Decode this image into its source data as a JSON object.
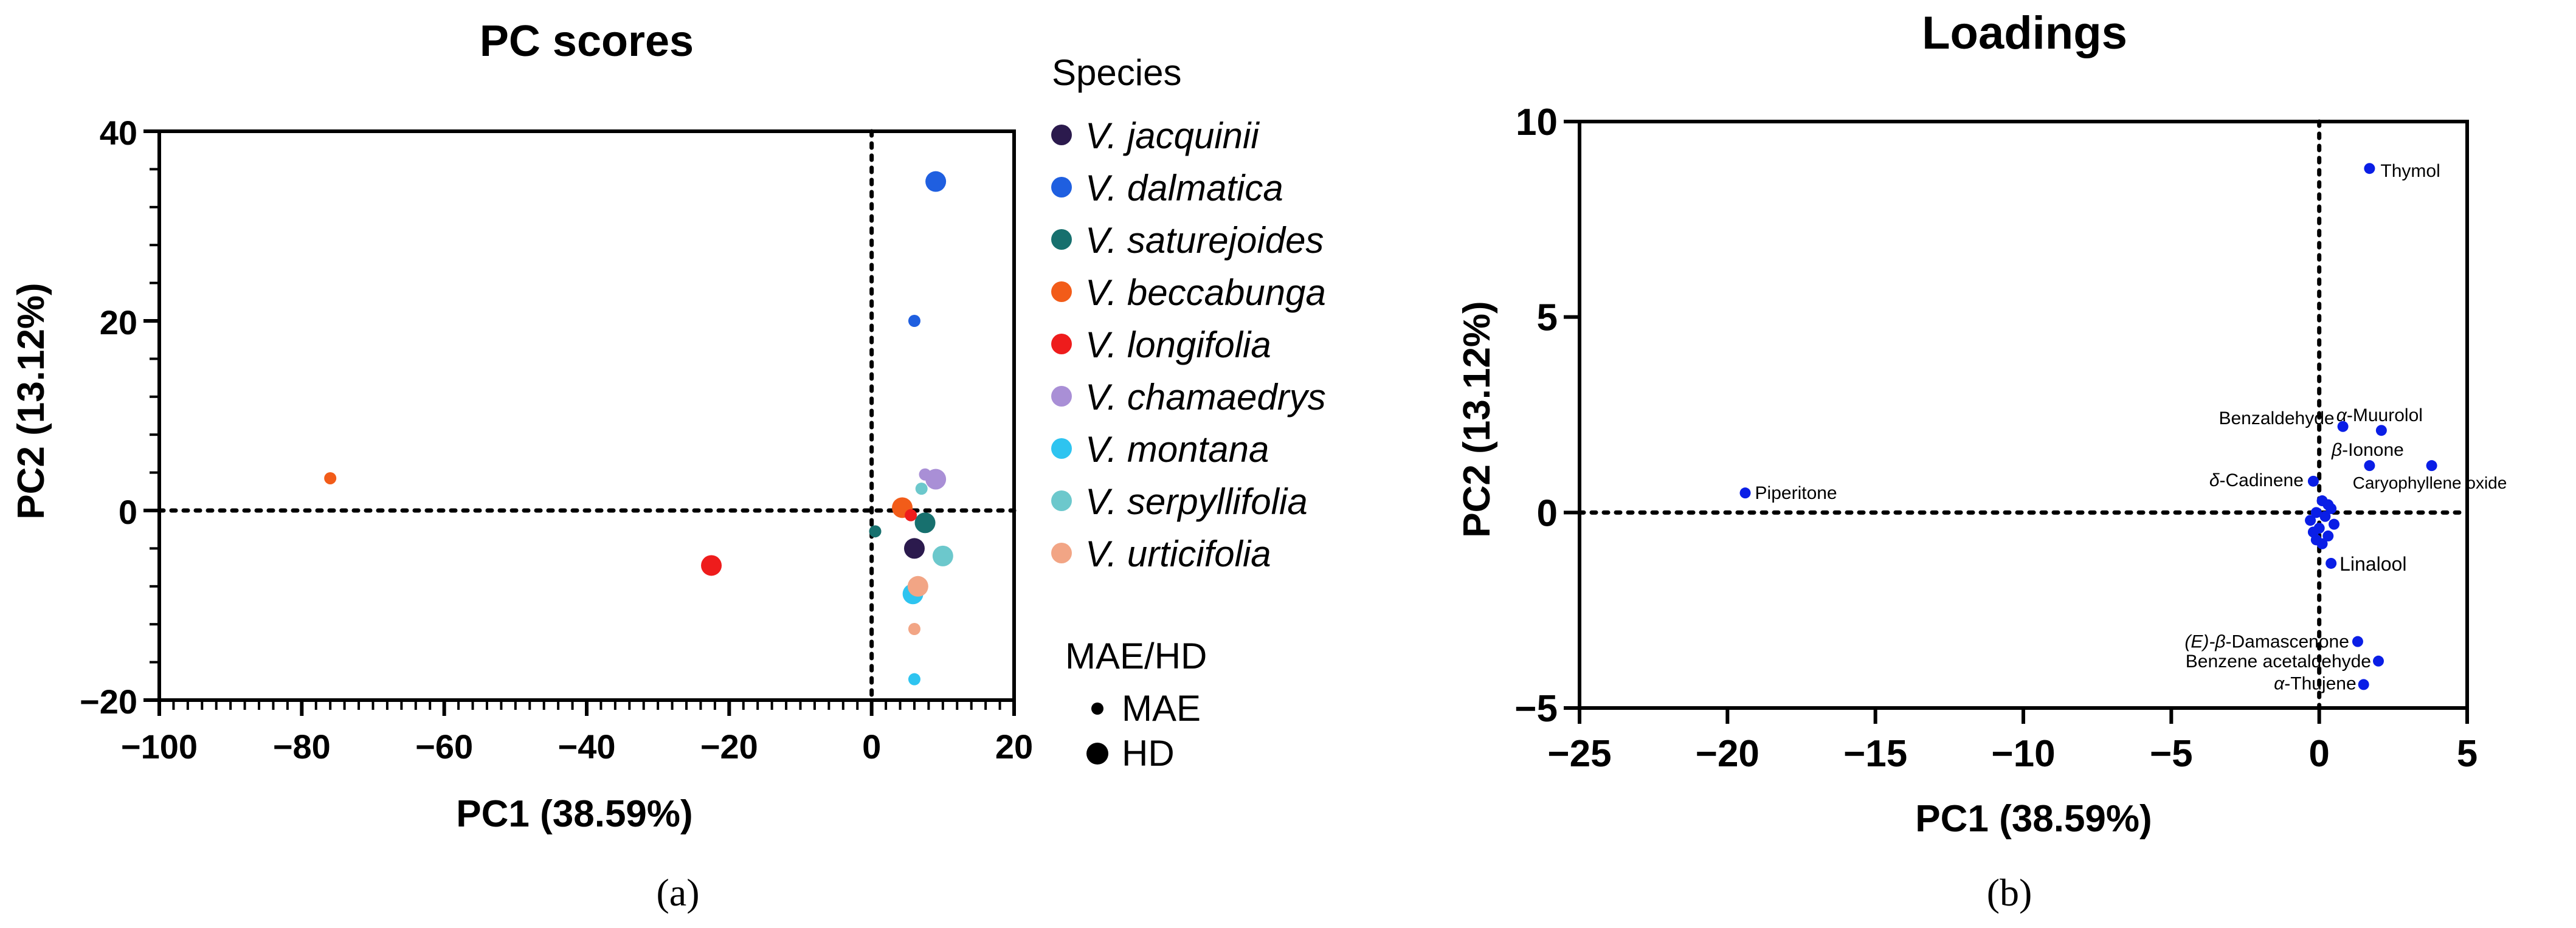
{
  "panel_labels": {
    "a": "(a)",
    "b": "(b)"
  },
  "chart_data": [
    {
      "type": "scatter",
      "title": "PC scores",
      "xlabel": "PC1 (38.59%)",
      "ylabel": "PC2 (13.12%)",
      "xlim": [
        -100,
        20
      ],
      "ylim": [
        -20,
        40
      ],
      "xticks": [
        -100,
        -80,
        -60,
        -40,
        -20,
        0,
        20
      ],
      "yticks": [
        -20,
        0,
        20,
        40
      ],
      "grid": false,
      "reference_lines": "dotted lines at x=0 and y=0",
      "legend": {
        "position": "right",
        "species_title": "Species",
        "method_title": "MAE/HD",
        "methods": [
          "MAE",
          "HD"
        ]
      },
      "series": [
        {
          "name": "V. jacquinii",
          "color": "#2b1a4d",
          "points": [
            {
              "x": 6,
              "y": -4,
              "method": "HD"
            }
          ]
        },
        {
          "name": "V. dalmatica",
          "color": "#1f5fe0",
          "points": [
            {
              "x": 9,
              "y": 34.7,
              "method": "HD"
            },
            {
              "x": 6,
              "y": 20,
              "method": "MAE"
            }
          ]
        },
        {
          "name": "V. saturejoides",
          "color": "#17706e",
          "points": [
            {
              "x": 7.5,
              "y": -1.3,
              "method": "HD"
            },
            {
              "x": 0.5,
              "y": -2.2,
              "method": "MAE"
            }
          ]
        },
        {
          "name": "V. beccabunga",
          "color": "#f25c19",
          "points": [
            {
              "x": 4.3,
              "y": 0.3,
              "method": "HD"
            },
            {
              "x": -76,
              "y": 3.4,
              "method": "MAE"
            }
          ]
        },
        {
          "name": "V. longifolia",
          "color": "#ee1c1c",
          "points": [
            {
              "x": -22.5,
              "y": -5.8,
              "method": "HD"
            },
            {
              "x": 5.5,
              "y": -0.5,
              "method": "MAE"
            }
          ]
        },
        {
          "name": "V. chamaedrys",
          "color": "#a98fd6",
          "points": [
            {
              "x": 9,
              "y": 3.3,
              "method": "HD"
            },
            {
              "x": 7.5,
              "y": 3.8,
              "method": "MAE"
            }
          ]
        },
        {
          "name": "V. montana",
          "color": "#2ec4f0",
          "points": [
            {
              "x": 5.8,
              "y": -8.8,
              "method": "HD"
            },
            {
              "x": 6,
              "y": -17.8,
              "method": "MAE"
            }
          ]
        },
        {
          "name": "V. serpyllifolia",
          "color": "#6cc8cc",
          "points": [
            {
              "x": 10,
              "y": -4.8,
              "method": "HD"
            },
            {
              "x": 7,
              "y": 2.3,
              "method": "MAE"
            }
          ]
        },
        {
          "name": "V. urticifolia",
          "color": "#f2a585",
          "points": [
            {
              "x": 6.5,
              "y": -8,
              "method": "HD"
            },
            {
              "x": 6,
              "y": -12.5,
              "method": "MAE"
            }
          ]
        }
      ]
    },
    {
      "type": "scatter",
      "title": "Loadings",
      "xlabel": "PC1 (38.59%)",
      "ylabel": "PC2 (13.12%)",
      "xlim": [
        -25,
        5
      ],
      "ylim": [
        -5,
        10
      ],
      "xticks": [
        -25,
        -20,
        -15,
        -10,
        -5,
        0,
        5
      ],
      "yticks": [
        -5,
        0,
        5,
        10
      ],
      "grid": false,
      "reference_lines": "dotted lines at x=0 and y=0",
      "point_color": "#0a1ee6",
      "labeled_points": [
        {
          "label": "Thymol",
          "x": 1.7,
          "y": 8.8
        },
        {
          "label": "Benzaldehyde",
          "x": 0.8,
          "y": 2.2
        },
        {
          "label": "α-Muurolol",
          "x": 2.1,
          "y": 2.1
        },
        {
          "label": "β-Ionone",
          "x": 1.7,
          "y": 1.2
        },
        {
          "label": "Caryophyllene oxide",
          "x": 3.8,
          "y": 1.2
        },
        {
          "label": "δ-Cadinene",
          "x": -0.2,
          "y": 0.8
        },
        {
          "label": "Piperitone",
          "x": -19.4,
          "y": 0.5
        },
        {
          "label": "Linalool",
          "x": 0.4,
          "y": -1.3
        },
        {
          "label": "(E)-β-Damascenone",
          "x": 1.3,
          "y": -3.3
        },
        {
          "label": "Benzene acetaldehyde",
          "x": 2.0,
          "y": -3.8
        },
        {
          "label": "α-Thujene",
          "x": 1.5,
          "y": -4.4
        }
      ],
      "unlabeled_points": [
        {
          "x": 0.1,
          "y": 0.3
        },
        {
          "x": 0.3,
          "y": 0.2
        },
        {
          "x": -0.1,
          "y": 0.0
        },
        {
          "x": 0.2,
          "y": -0.1
        },
        {
          "x": -0.3,
          "y": -0.2
        },
        {
          "x": 0.5,
          "y": -0.3
        },
        {
          "x": 0.0,
          "y": -0.4
        },
        {
          "x": -0.2,
          "y": -0.5
        },
        {
          "x": 0.3,
          "y": -0.6
        },
        {
          "x": 0.1,
          "y": -0.8
        },
        {
          "x": -0.1,
          "y": -0.7
        },
        {
          "x": 0.4,
          "y": 0.1
        }
      ]
    }
  ]
}
